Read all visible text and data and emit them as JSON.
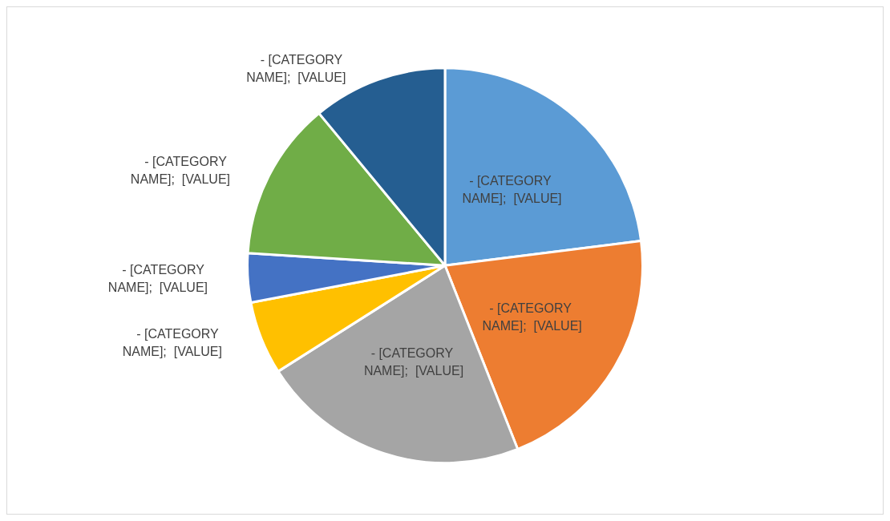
{
  "chart_data": {
    "type": "pie",
    "categories": [
      "- [CATEGORY NAME];  [VALUE]",
      "- [CATEGORY NAME];  [VALUE]",
      "- [CATEGORY NAME];  [VALUE]",
      "- [CATEGORY NAME];  [VALUE]",
      "- [CATEGORY NAME];  [VALUE]",
      "- [CATEGORY NAME];  [VALUE]",
      "- [CATEGORY NAME];  [VALUE]"
    ],
    "values": [
      23,
      21,
      22,
      6,
      4,
      13,
      11
    ],
    "colors": [
      "#5b9bd5",
      "#ed7d31",
      "#a5a5a5",
      "#ffc000",
      "#4472c4",
      "#70ad47",
      "#255e91"
    ],
    "legend": false
  }
}
